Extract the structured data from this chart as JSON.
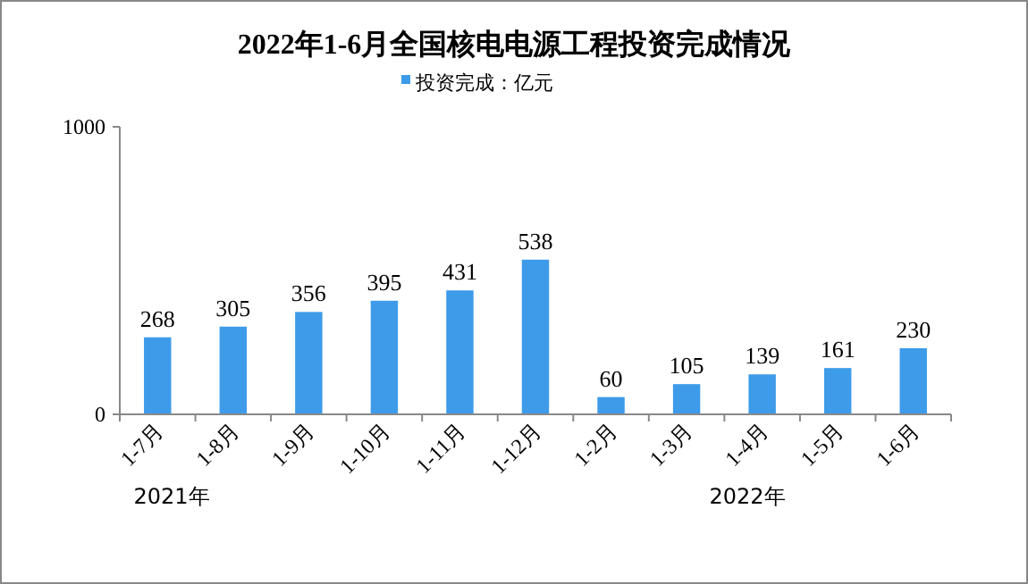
{
  "chart_data": {
    "type": "bar",
    "title": "2022年1-6月全国核电电源工程投资完成情况",
    "categories": [
      "1-7月",
      "1-8月",
      "1-9月",
      "1-10月",
      "1-11月",
      "1-12月",
      "1-2月",
      "1-3月",
      "1-4月",
      "1-5月",
      "1-6月"
    ],
    "series": [
      {
        "name": "投资完成：亿元",
        "color": "#3d9be9",
        "values": [
          268,
          305,
          356,
          395,
          431,
          538,
          60,
          105,
          139,
          161,
          230
        ]
      }
    ],
    "ylim": [
      0,
      1000
    ],
    "yticks": [
      0,
      1000
    ],
    "data_labels": true,
    "legend": "top",
    "grid": false,
    "annotations": [
      "2021年",
      "2022年"
    ]
  }
}
